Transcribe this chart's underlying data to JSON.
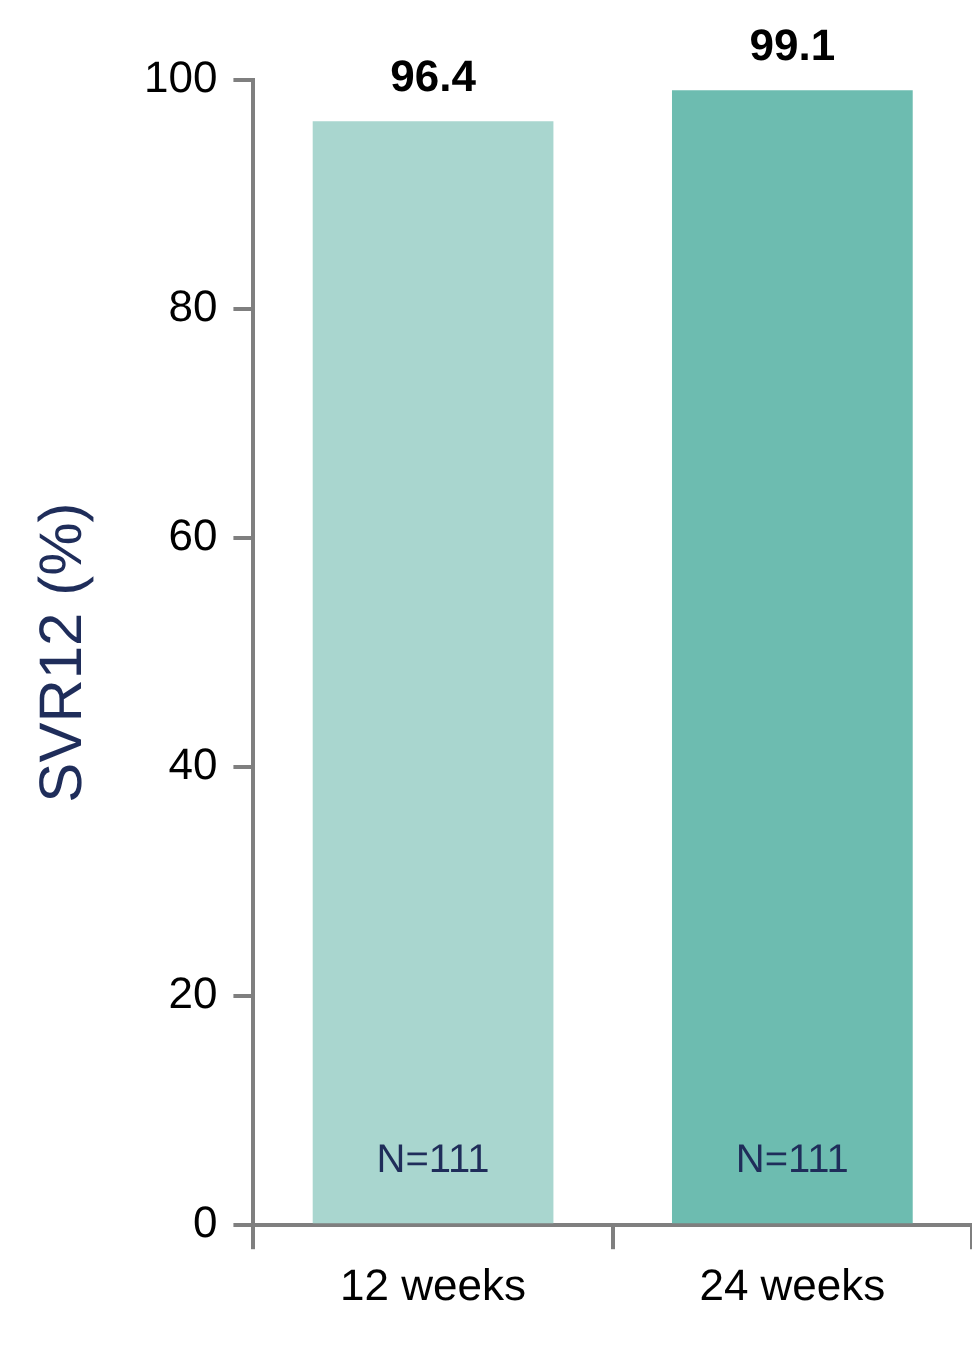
{
  "chart_data": {
    "type": "bar",
    "ylabel": "SVR12 (%)",
    "categories": [
      "12 weeks",
      "24 weeks"
    ],
    "values": [
      96.4,
      99.1
    ],
    "colors": [
      "#a9d6cf",
      "#6dbcb0"
    ],
    "ylim": [
      0,
      100
    ],
    "yticks": [
      0,
      20,
      40,
      60,
      80,
      100
    ],
    "grid": false,
    "legend": false,
    "data_labels": true,
    "annotations": [
      "N=111",
      "N=111"
    ]
  }
}
